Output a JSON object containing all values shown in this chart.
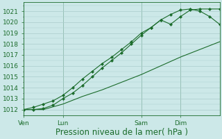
{
  "background_color": "#cce8e8",
  "grid_color": "#aacccc",
  "line_color": "#1a6b2a",
  "title": "Pression niveau de la mer( hPa )",
  "ylim": [
    1011.5,
    1021.8
  ],
  "yticks": [
    1012,
    1013,
    1014,
    1015,
    1016,
    1017,
    1018,
    1019,
    1020,
    1021
  ],
  "day_labels": [
    "Ven",
    "Lun",
    "Sam",
    "Dim"
  ],
  "day_positions": [
    0,
    24,
    72,
    96
  ],
  "xlim": [
    0,
    120
  ],
  "series1_x": [
    0,
    6,
    12,
    18,
    24,
    30,
    36,
    42,
    48,
    54,
    60,
    66,
    72,
    78,
    84,
    90,
    96,
    102,
    108,
    114,
    120
  ],
  "series1_y": [
    1012.0,
    1012.2,
    1012.5,
    1012.8,
    1013.3,
    1014.0,
    1014.8,
    1015.5,
    1016.2,
    1016.8,
    1017.5,
    1018.2,
    1019.0,
    1019.5,
    1020.2,
    1020.7,
    1021.1,
    1021.2,
    1021.0,
    1020.5,
    1019.8
  ],
  "series2_x": [
    0,
    6,
    12,
    18,
    24,
    30,
    36,
    42,
    48,
    54,
    60,
    66,
    72,
    78,
    84,
    90,
    96,
    102,
    108,
    114,
    120
  ],
  "series2_y": [
    1012.0,
    1012.0,
    1012.1,
    1012.4,
    1013.0,
    1013.5,
    1014.2,
    1015.0,
    1015.8,
    1016.5,
    1017.2,
    1018.0,
    1018.8,
    1019.5,
    1020.2,
    1019.8,
    1020.5,
    1021.1,
    1021.2,
    1021.2,
    1021.2
  ],
  "series3_x": [
    0,
    12,
    24,
    36,
    48,
    60,
    72,
    84,
    96,
    108,
    120
  ],
  "series3_y": [
    1012.0,
    1012.0,
    1012.5,
    1013.2,
    1013.8,
    1014.5,
    1015.2,
    1016.0,
    1016.8,
    1017.5,
    1018.2
  ],
  "title_fontsize": 8.5,
  "tick_fontsize": 6.5
}
